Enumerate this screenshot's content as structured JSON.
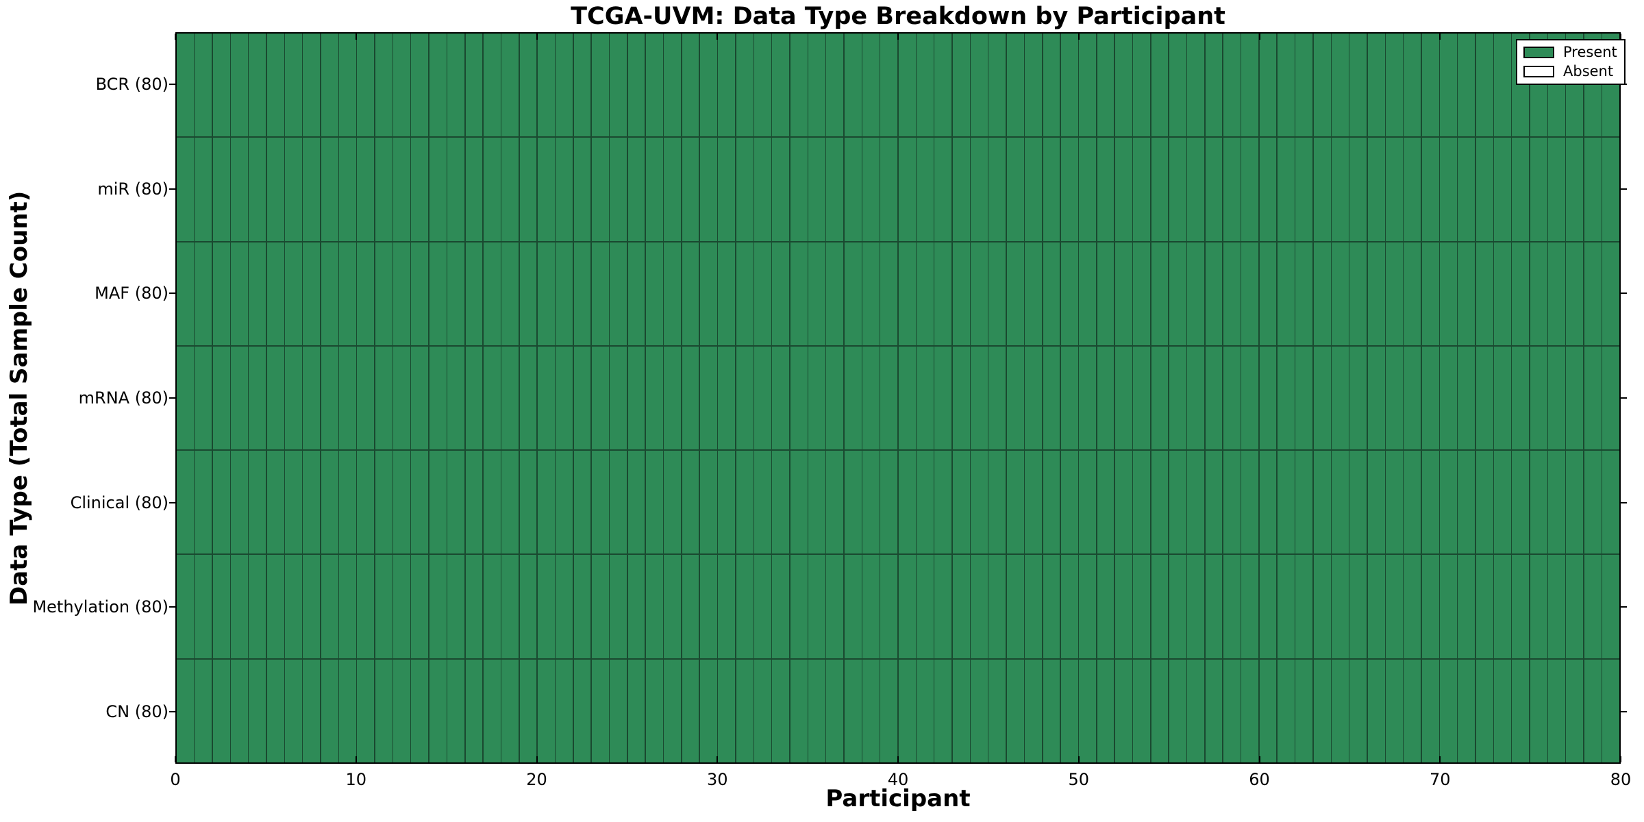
{
  "figure": {
    "title": "TCGA-UVM: Data Type Breakdown by Participant",
    "xlabel": "Participant",
    "ylabel": "Data Type (Total Sample Count)"
  },
  "legend": {
    "position": "upper right",
    "entries": [
      {
        "label": "Present",
        "state": "present",
        "color": "#2E8B57"
      },
      {
        "label": "Absent",
        "state": "absent",
        "color": "#FFFFFF"
      }
    ]
  },
  "colors": {
    "present": "#2E8B57",
    "absent": "#FFFFFF",
    "cell_border": "#1A4930",
    "spine": "#000000",
    "background": "#FFFFFF",
    "text": "#000000"
  },
  "chart_data": {
    "type": "heatmap",
    "title": "TCGA-UVM: Data Type Breakdown by Participant",
    "xlabel": "Participant",
    "ylabel": "Data Type (Total Sample Count)",
    "cohort": "TCGA-UVM",
    "n_participants": 80,
    "x_range": [
      0,
      80
    ],
    "x_ticks": [
      0,
      10,
      20,
      30,
      40,
      50,
      60,
      70,
      80
    ],
    "grid": true,
    "legend_position": "upper right",
    "cell_states": {
      "present": 1,
      "absent": 0
    },
    "all_cells": "present",
    "rows": [
      {
        "label": "BCR (80)",
        "data_type": "BCR",
        "total_samples": 80,
        "present_count": 80,
        "absent_count": 0
      },
      {
        "label": "miR (80)",
        "data_type": "miR",
        "total_samples": 80,
        "present_count": 80,
        "absent_count": 0
      },
      {
        "label": "MAF (80)",
        "data_type": "MAF",
        "total_samples": 80,
        "present_count": 80,
        "absent_count": 0
      },
      {
        "label": "mRNA (80)",
        "data_type": "mRNA",
        "total_samples": 80,
        "present_count": 80,
        "absent_count": 0
      },
      {
        "label": "Clinical (80)",
        "data_type": "Clinical",
        "total_samples": 80,
        "present_count": 80,
        "absent_count": 0
      },
      {
        "label": "Methylation (80)",
        "data_type": "Methylation",
        "total_samples": 80,
        "present_count": 80,
        "absent_count": 0
      },
      {
        "label": "CN (80)",
        "data_type": "CN",
        "total_samples": 80,
        "present_count": 80,
        "absent_count": 0
      }
    ]
  }
}
